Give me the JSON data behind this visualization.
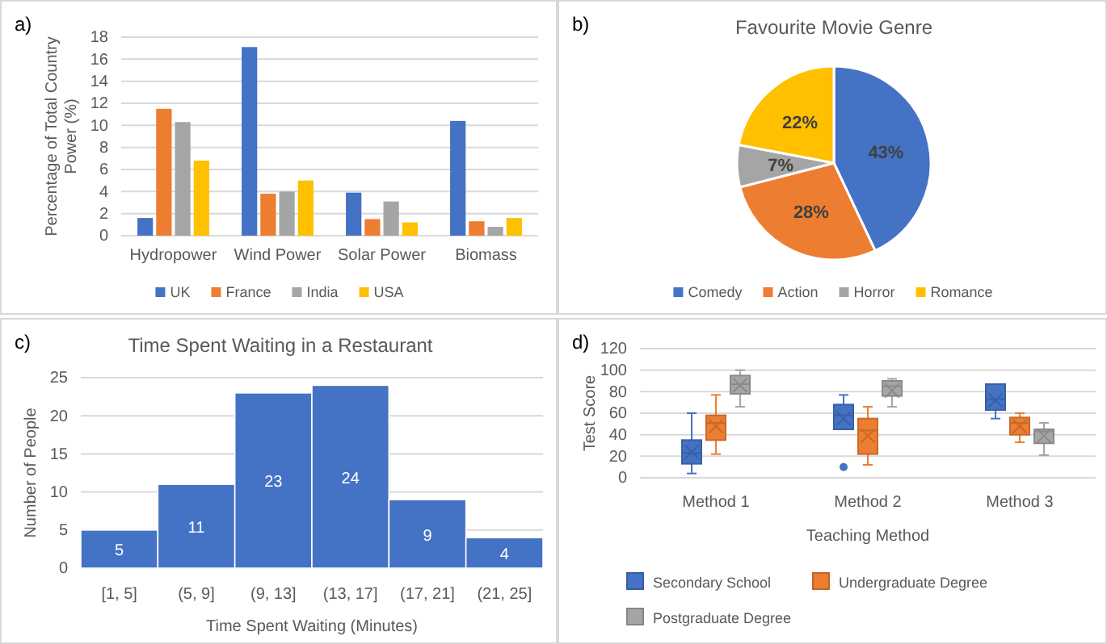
{
  "chart_data": [
    {
      "type": "bar",
      "annotations": [
        "a)"
      ],
      "ylabel": "Percentage of Total Country Power (%)",
      "categories": [
        "Hydropower",
        "Wind Power",
        "Solar Power",
        "Biomass"
      ],
      "series": [
        {
          "name": "UK",
          "color": "#4472c4",
          "values": [
            1.6,
            17.1,
            3.9,
            10.4
          ]
        },
        {
          "name": "France",
          "color": "#ed7d31",
          "values": [
            11.5,
            3.8,
            1.5,
            1.3
          ]
        },
        {
          "name": "India",
          "color": "#a5a5a5",
          "values": [
            10.3,
            4.0,
            3.1,
            0.8
          ]
        },
        {
          "name": "USA",
          "color": "#ffc000",
          "values": [
            6.8,
            5.0,
            1.2,
            1.6
          ]
        }
      ],
      "ylim": [
        0,
        18
      ],
      "yticks": [
        0,
        2,
        4,
        6,
        8,
        10,
        12,
        14,
        16,
        18
      ],
      "grid": "y",
      "legend": "bottom"
    },
    {
      "type": "pie",
      "annotations": [
        "b)"
      ],
      "title": "Favourite Movie Genre",
      "categories": [
        "Comedy",
        "Action",
        "Horror",
        "Romance"
      ],
      "values": [
        43,
        28,
        7,
        22
      ],
      "colors": [
        "#4472c4",
        "#ed7d31",
        "#a5a5a5",
        "#ffc000"
      ],
      "value_labels": [
        "43%",
        "28%",
        "7%",
        "22%"
      ],
      "legend": "bottom"
    },
    {
      "type": "bar",
      "annotations": [
        "c)"
      ],
      "title": "Time Spent Waiting in a Restaurant",
      "xlabel": "Time Spent Waiting (Minutes)",
      "ylabel": "Number of People",
      "categories": [
        "[1, 5]",
        "(5, 9]",
        "(9, 13]",
        "(13, 17]",
        "(17, 21]",
        "(21, 25]"
      ],
      "values": [
        5,
        11,
        23,
        24,
        9,
        4
      ],
      "color": "#4472c4",
      "data_labels": true,
      "ylim": [
        0,
        25
      ],
      "yticks": [
        0,
        5,
        10,
        15,
        20,
        25
      ],
      "grid": "y"
    },
    {
      "type": "box",
      "annotations": [
        "d)"
      ],
      "xlabel": "Teaching Method",
      "ylabel": "Test Score",
      "categories": [
        "Method 1",
        "Method 2",
        "Method 3"
      ],
      "marker": "cross",
      "series": [
        {
          "name": "Secondary School",
          "color": "#4472c4",
          "boxes": [
            {
              "low": 4,
              "q1": 13,
              "median": 23,
              "q3": 35,
              "high": 60,
              "mean": 24
            },
            {
              "low": 45,
              "q1": 45,
              "median": 58,
              "q3": 68,
              "high": 77,
              "mean": 55,
              "outliers": [
                10
              ]
            },
            {
              "low": 55,
              "q1": 63,
              "median": 73,
              "q3": 87,
              "high": 87,
              "mean": 72
            }
          ]
        },
        {
          "name": "Undergraduate Degree",
          "color": "#ed7d31",
          "boxes": [
            {
              "low": 22,
              "q1": 35,
              "median": 51,
              "q3": 58,
              "high": 77,
              "mean": 48
            },
            {
              "low": 12,
              "q1": 22,
              "median": 44,
              "q3": 55,
              "high": 66,
              "mean": 39
            },
            {
              "low": 33,
              "q1": 40,
              "median": 51,
              "q3": 56,
              "high": 60,
              "mean": 48
            }
          ]
        },
        {
          "name": "Postgraduate Degree",
          "color": "#a5a5a5",
          "boxes": [
            {
              "low": 66,
              "q1": 78,
              "median": 87,
              "q3": 95,
              "high": 100,
              "mean": 86
            },
            {
              "low": 66,
              "q1": 76,
              "median": 85,
              "q3": 90,
              "high": 92,
              "mean": 81
            },
            {
              "low": 21,
              "q1": 32,
              "median": 43,
              "q3": 45,
              "high": 51,
              "mean": 39
            }
          ]
        }
      ],
      "ylim": [
        0,
        120
      ],
      "yticks": [
        0,
        20,
        40,
        60,
        80,
        100,
        120
      ],
      "grid": "y",
      "legend": "bottom"
    }
  ]
}
